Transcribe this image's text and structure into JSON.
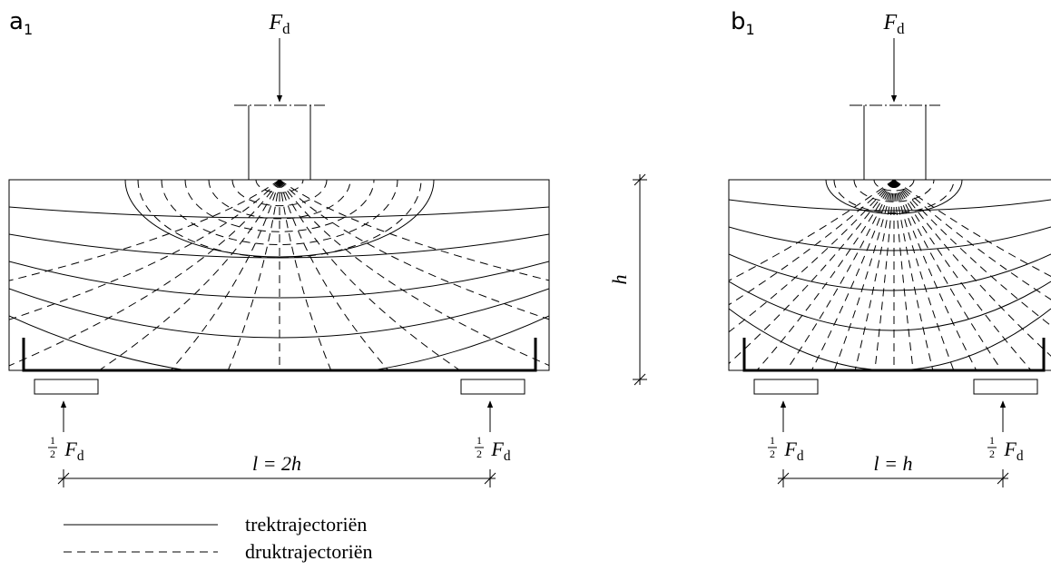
{
  "panels": [
    {
      "label": "a",
      "label_subscript": "1",
      "load": {
        "symbol": "F",
        "subscript": "d"
      },
      "reactions": [
        {
          "numerator": "1",
          "denominator": "2",
          "symbol": "F",
          "subscript": "d"
        },
        {
          "numerator": "1",
          "denominator": "2",
          "symbol": "F",
          "subscript": "d"
        }
      ],
      "span": "l = 2h"
    },
    {
      "label": "b",
      "label_subscript": "1",
      "load": {
        "symbol": "F",
        "subscript": "d"
      },
      "reactions": [
        {
          "numerator": "1",
          "denominator": "2",
          "symbol": "F",
          "subscript": "d"
        },
        {
          "numerator": "1",
          "denominator": "2",
          "symbol": "F",
          "subscript": "d"
        }
      ],
      "span": "l = h"
    }
  ],
  "height_label": "h",
  "legend": [
    {
      "text": "trektrajectoriën"
    },
    {
      "text": "druktrajectoriën"
    }
  ]
}
